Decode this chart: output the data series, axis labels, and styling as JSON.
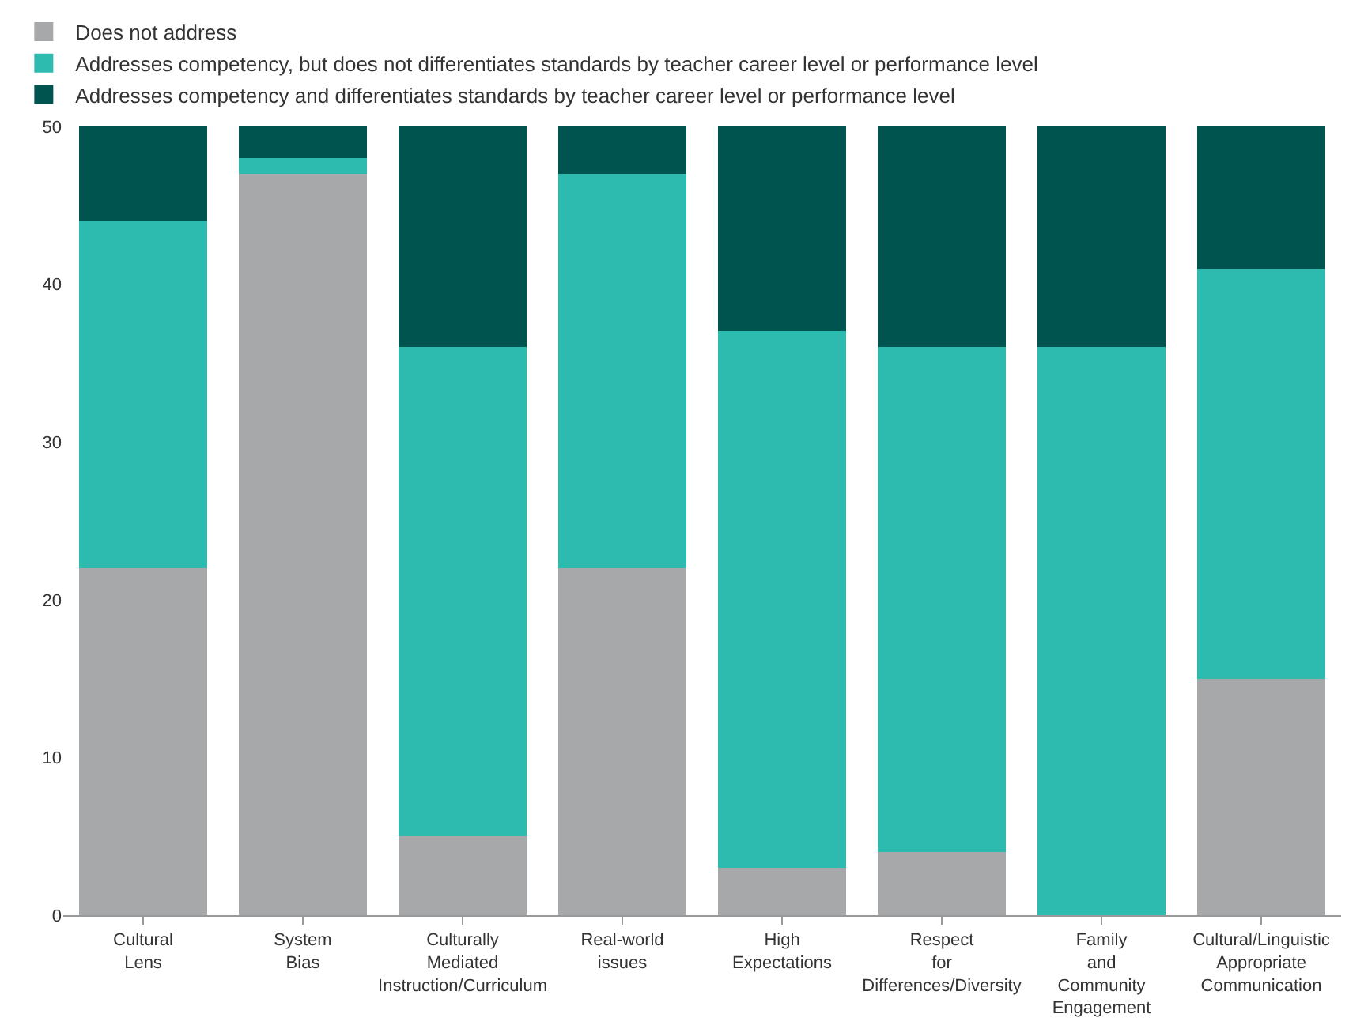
{
  "chart_data": {
    "type": "bar",
    "stacked": true,
    "categories": [
      "Cultural Lens",
      "System Bias",
      "Culturally Mediated Instruction/Curriculum",
      "Real-world issues",
      "High Expectations",
      "Respect for Differences/Diversity",
      "Family and Community Engagement",
      "Cultural/Linguistic Appropriate Communication"
    ],
    "series": [
      {
        "name": "Does not address",
        "color": "#a7a8aa",
        "values": [
          22,
          47,
          5,
          22,
          3,
          4,
          0,
          15
        ]
      },
      {
        "name": "Addresses competency, but does not differentiates standards by teacher career level or performance level",
        "color": "#2dbbb0",
        "values": [
          22,
          1,
          31,
          25,
          34,
          32,
          36,
          26
        ]
      },
      {
        "name": "Addresses competency and differentiates standards by teacher career level or performance level",
        "color": "#005450",
        "values": [
          6,
          2,
          14,
          3,
          13,
          14,
          14,
          9
        ]
      }
    ],
    "ylim": [
      0,
      50
    ],
    "yticks": [
      0,
      10,
      20,
      30,
      40,
      50
    ],
    "grid": false,
    "legend": "top left"
  }
}
